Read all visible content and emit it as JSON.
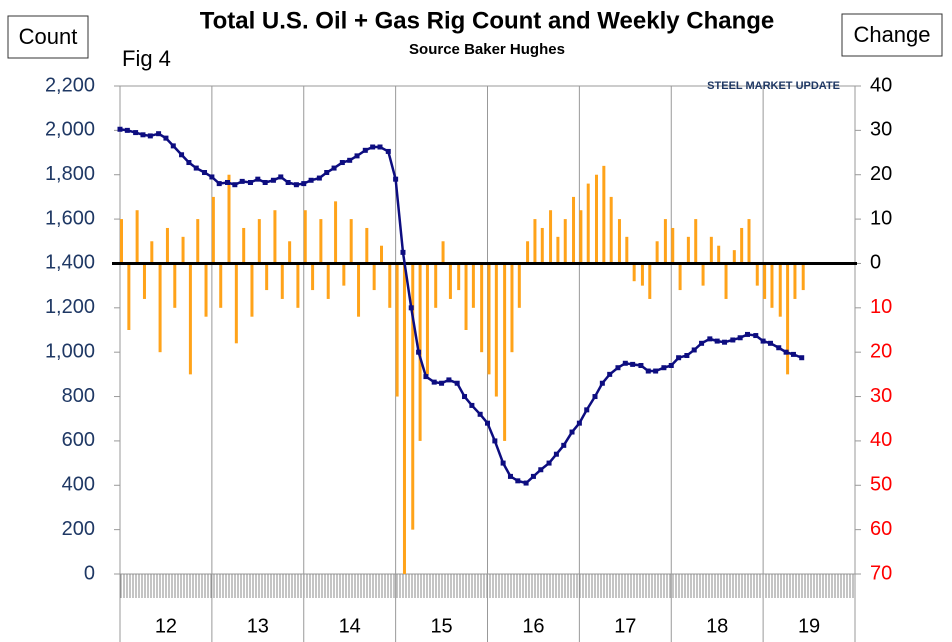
{
  "chart_data": {
    "type": "combo",
    "title": "Total U.S. Oil + Gas Rig Count and Weekly Change",
    "subtitle": "Source Baker Hughes",
    "annotation": "Fig 4",
    "logo": "STEEL MARKET UPDATE",
    "y_label": "Count",
    "y2_label": "Change",
    "categories": [
      "12",
      "13",
      "14",
      "15",
      "16",
      "17",
      "18",
      "19"
    ],
    "xlim": [
      12,
      20
    ],
    "ylim": [
      0,
      2200
    ],
    "yticks": [
      0,
      200,
      400,
      600,
      800,
      {
        "value": 1000,
        "label": "1,000"
      },
      {
        "value": 1200,
        "label": "1,200"
      },
      {
        "value": 1400,
        "label": "1,400"
      },
      {
        "value": 1600,
        "label": "1,600"
      },
      {
        "value": 1800,
        "label": "1,800"
      },
      {
        "value": 2000,
        "label": "2,000"
      },
      {
        "value": 2200,
        "label": "2,200"
      }
    ],
    "y2lim": [
      -70,
      40
    ],
    "y2ticks": [
      40,
      30,
      20,
      10,
      0,
      {
        "value": -10,
        "label": "10"
      },
      {
        "value": -20,
        "label": "20"
      },
      {
        "value": -30,
        "label": "30"
      },
      {
        "value": -40,
        "label": "40"
      },
      {
        "value": -50,
        "label": "50"
      },
      {
        "value": -60,
        "label": "60"
      },
      {
        "value": -70,
        "label": "70"
      }
    ],
    "y2_negative_tick_color": "#ff0000",
    "grid": true,
    "x": [
      12,
      12.08,
      12.17,
      12.25,
      12.33,
      12.42,
      12.5,
      12.58,
      12.67,
      12.75,
      12.83,
      12.92,
      13,
      13.08,
      13.17,
      13.25,
      13.33,
      13.42,
      13.5,
      13.58,
      13.67,
      13.75,
      13.83,
      13.92,
      14,
      14.08,
      14.17,
      14.25,
      14.33,
      14.42,
      14.5,
      14.58,
      14.67,
      14.75,
      14.83,
      14.92,
      15,
      15.08,
      15.17,
      15.25,
      15.33,
      15.42,
      15.5,
      15.58,
      15.67,
      15.75,
      15.83,
      15.92,
      16,
      16.08,
      16.17,
      16.25,
      16.33,
      16.42,
      16.5,
      16.58,
      16.67,
      16.75,
      16.83,
      16.92,
      17,
      17.08,
      17.17,
      17.25,
      17.33,
      17.42,
      17.5,
      17.58,
      17.67,
      17.75,
      17.83,
      17.92,
      18,
      18.08,
      18.17,
      18.25,
      18.33,
      18.42,
      18.5,
      18.58,
      18.67,
      18.75,
      18.83,
      18.92,
      19,
      19.08,
      19.17,
      19.25,
      19.33,
      19.42
    ],
    "series": [
      {
        "type": "bar",
        "axis": "y2",
        "color": "#ffa31a",
        "values": [
          10,
          -15,
          12,
          -8,
          5,
          -20,
          8,
          -10,
          6,
          -25,
          10,
          -12,
          15,
          -10,
          20,
          -18,
          8,
          -12,
          10,
          -6,
          12,
          -8,
          5,
          -10,
          12,
          -6,
          10,
          -8,
          14,
          -5,
          10,
          -12,
          8,
          -6,
          4,
          -10,
          -30,
          -70,
          -60,
          -40,
          -25,
          -10,
          5,
          -8,
          -6,
          -15,
          -10,
          -20,
          -25,
          -30,
          -40,
          -20,
          -10,
          5,
          10,
          8,
          12,
          6,
          10,
          15,
          12,
          18,
          20,
          22,
          15,
          10,
          6,
          -4,
          -5,
          -8,
          5,
          10,
          8,
          -6,
          6,
          10,
          -5,
          6,
          4,
          -8,
          3,
          8,
          10,
          -5,
          -8,
          -10,
          -12,
          -25,
          -8,
          -6
        ]
      },
      {
        "type": "line",
        "axis": "y",
        "color": "#0d0d80",
        "values": [
          2005,
          2000,
          1990,
          1980,
          1975,
          1985,
          1965,
          1930,
          1890,
          1855,
          1830,
          1810,
          1790,
          1760,
          1765,
          1755,
          1770,
          1765,
          1780,
          1765,
          1775,
          1790,
          1765,
          1755,
          1760,
          1775,
          1785,
          1810,
          1830,
          1855,
          1865,
          1885,
          1910,
          1925,
          1925,
          1905,
          1780,
          1450,
          1200,
          1000,
          890,
          865,
          860,
          875,
          860,
          800,
          760,
          720,
          680,
          600,
          500,
          440,
          420,
          410,
          440,
          470,
          500,
          540,
          580,
          640,
          680,
          740,
          800,
          860,
          900,
          930,
          950,
          945,
          940,
          915,
          915,
          930,
          940,
          975,
          985,
          1010,
          1040,
          1060,
          1050,
          1045,
          1055,
          1065,
          1080,
          1075,
          1050,
          1040,
          1020,
          1000,
          990,
          975
        ]
      }
    ]
  }
}
